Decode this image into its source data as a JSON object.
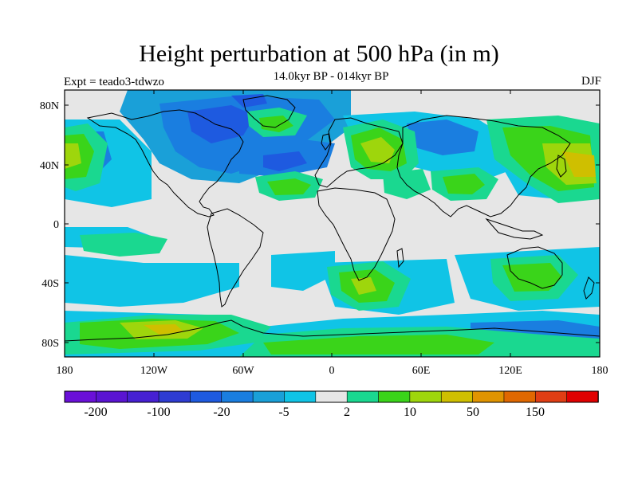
{
  "header": {
    "title": "Height perturbation at 500 hPa (in m)",
    "subtitle": "14.0kyr BP - 014kyr BP",
    "left_label": "Expt = teado3-tdwzo",
    "right_label": "DJF"
  },
  "axes": {
    "lat_ticks": [
      "80N",
      "40N",
      "0",
      "40S",
      "80S"
    ],
    "lon_ticks": [
      "180",
      "120W",
      "60W",
      "0",
      "60E",
      "120E",
      "180"
    ]
  },
  "colorbar": {
    "colors": [
      "#6a10d8",
      "#5a14d2",
      "#4620d2",
      "#2e3cd2",
      "#1e5ae0",
      "#1a7ee0",
      "#1aa0d8",
      "#10c4e6",
      "#e6e6e6",
      "#1ad890",
      "#3ad41a",
      "#9ed60c",
      "#cfbf00",
      "#e09400",
      "#e06800",
      "#e03e14",
      "#e00000"
    ],
    "labels": [
      "-200",
      "-100",
      "-20",
      "-5",
      "2",
      "10",
      "50",
      "150"
    ]
  },
  "chart_data": {
    "type": "heatmap",
    "title": "Height perturbation at 500 hPa (in m)",
    "subtitle": "14.0kyr BP - 014kyr BP",
    "left_annotation": "Expt = teado3-tdwzo",
    "season": "DJF",
    "x_range": [
      -180,
      180
    ],
    "y_range": [
      -90,
      90
    ],
    "lat_ticks": [
      "80N",
      "40N",
      "0",
      "40S",
      "80S"
    ],
    "lon_ticks": [
      "180",
      "120W",
      "60W",
      "0",
      "60E",
      "120E",
      "180"
    ],
    "contour_levels": [
      -200,
      -100,
      -20,
      -5,
      2,
      10,
      50,
      150
    ],
    "colorbar_labels": [
      "-200",
      "-100",
      "-20",
      "-5",
      "2",
      "10",
      "50",
      "150"
    ]
  }
}
